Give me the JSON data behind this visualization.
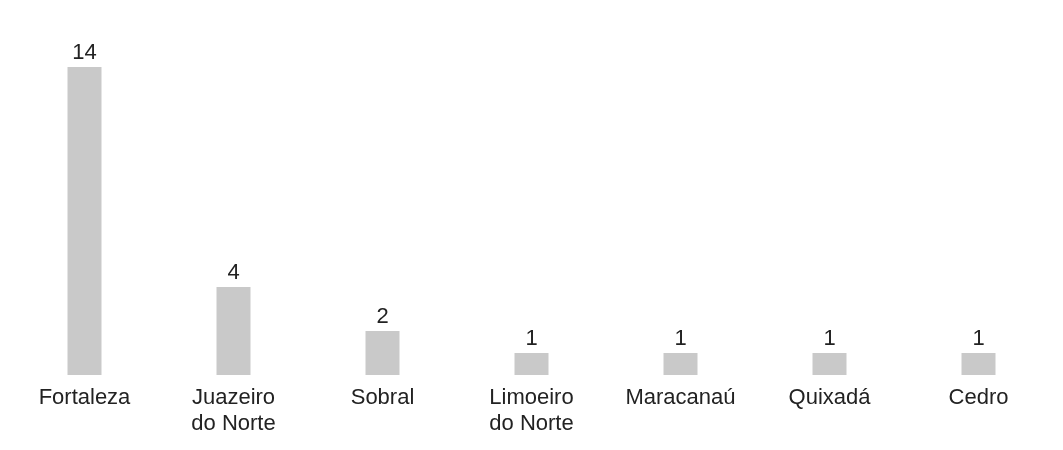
{
  "chart_data": {
    "type": "bar",
    "categories": [
      "Fortaleza",
      "Juazeiro do Norte",
      "Sobral",
      "Limoeiro do Norte",
      "Maracanaú",
      "Quixadá",
      "Cedro"
    ],
    "values": [
      14,
      4,
      2,
      1,
      1,
      1,
      1
    ],
    "color": "#c9c9c9",
    "data_labels": true
  }
}
